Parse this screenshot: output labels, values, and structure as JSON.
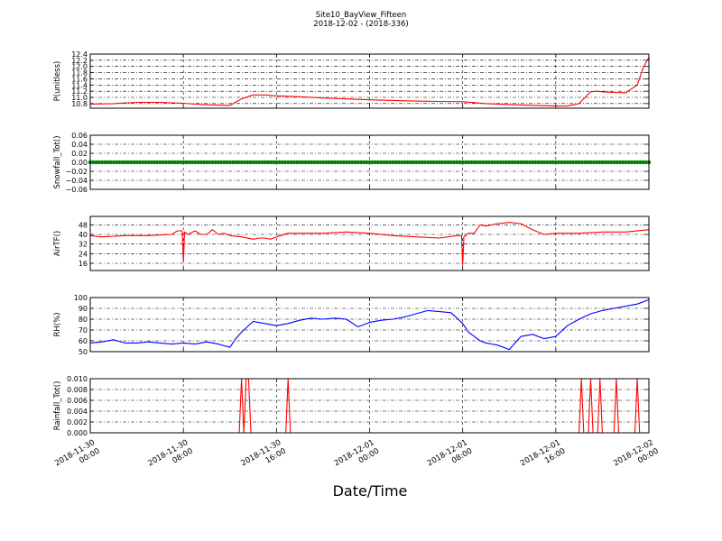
{
  "figure": {
    "title_line1": "Site10_BayView_Fifteen",
    "title_line2": "2018-12-02 - (2018-336)",
    "xlabel": "Date/Time"
  },
  "chart_data": [
    {
      "type": "line",
      "ylabel": "P(unitless)",
      "color": "#ff0000",
      "ylim": [
        10.65,
        12.4
      ],
      "yticks": [
        "12.4",
        "12.2",
        "12.0",
        "11.8",
        "11.6",
        "11.4",
        "11.2",
        "11.0",
        "10.8"
      ],
      "ytick_values": [
        12.4,
        12.2,
        12.0,
        11.8,
        11.6,
        11.4,
        11.2,
        11.0,
        10.8
      ],
      "x_hours": [
        0,
        2,
        4,
        6,
        8,
        9,
        10,
        12,
        13,
        14,
        15,
        16,
        18,
        20,
        22,
        24,
        26,
        28,
        30,
        32,
        34,
        36,
        38,
        40,
        41,
        42,
        43,
        43.5,
        44,
        45,
        46,
        47,
        47.5,
        48
      ],
      "values": [
        10.78,
        10.8,
        10.84,
        10.84,
        10.81,
        10.78,
        10.76,
        10.74,
        10.95,
        11.08,
        11.08,
        11.05,
        11.02,
        10.98,
        10.95,
        10.92,
        10.9,
        10.88,
        10.87,
        10.86,
        10.8,
        10.77,
        10.74,
        10.72,
        10.72,
        10.8,
        11.18,
        11.2,
        11.18,
        11.16,
        11.15,
        11.4,
        11.95,
        12.3
      ]
    },
    {
      "type": "scatter",
      "ylabel": "Snowfall_Tot()",
      "color": "#008000",
      "ylim": [
        -0.06,
        0.06
      ],
      "yticks": [
        "0.06",
        "0.04",
        "0.02",
        "0.00",
        "−0.02",
        "−0.04",
        "−0.06"
      ],
      "ytick_values": [
        0.06,
        0.04,
        0.02,
        0.0,
        -0.02,
        -0.04,
        -0.06
      ],
      "constant_value": 0.0,
      "x_range_hours": [
        0,
        48
      ]
    },
    {
      "type": "line",
      "ylabel": "AirTF()",
      "color": "#ff0000",
      "ylim": [
        10,
        55
      ],
      "yticks": [
        "48",
        "40",
        "32",
        "24",
        "16"
      ],
      "ytick_values": [
        48,
        40,
        32,
        24,
        16
      ],
      "x_hours": [
        0,
        1,
        3,
        5,
        7,
        7.5,
        7.9,
        8.0,
        8.1,
        8.4,
        9,
        9.5,
        10,
        10.5,
        11,
        11.5,
        12,
        13,
        14,
        14.5,
        15,
        15.5,
        16,
        17,
        18,
        20,
        22,
        24,
        26,
        28,
        30,
        31.5,
        31.9,
        32.0,
        32.1,
        32.5,
        33,
        33.5,
        34,
        35,
        36,
        37,
        38,
        39,
        40,
        42,
        44,
        46,
        48
      ],
      "values": [
        39,
        38,
        39,
        39,
        40,
        43,
        43,
        17,
        42,
        40,
        43,
        40,
        40,
        44,
        40,
        41,
        39,
        38,
        36,
        37,
        37,
        36,
        38,
        41,
        41,
        41,
        42,
        41,
        39,
        38,
        37,
        39,
        39,
        15,
        38,
        41,
        41,
        48,
        47,
        49,
        50,
        49,
        44,
        40,
        41,
        41,
        42,
        42,
        44
      ]
    },
    {
      "type": "line",
      "ylabel": "RH(%)",
      "color": "#0000ff",
      "ylim": [
        50,
        100
      ],
      "yticks": [
        "100",
        "90",
        "80",
        "70",
        "60",
        "50"
      ],
      "ytick_values": [
        100,
        90,
        80,
        70,
        60,
        50
      ],
      "x_hours": [
        0,
        1,
        2,
        3,
        4,
        5,
        6,
        7,
        8,
        9,
        10,
        11,
        12,
        12.5,
        13,
        14,
        15,
        16,
        17,
        18,
        19,
        20,
        21,
        22,
        23,
        24,
        25,
        26,
        27,
        28,
        29,
        30,
        31,
        32,
        32.5,
        33,
        33.5,
        34,
        35,
        36,
        37,
        38,
        39,
        40,
        41,
        42,
        43,
        44,
        45,
        46,
        47,
        48
      ],
      "values": [
        58,
        59,
        61,
        58,
        58,
        59,
        58,
        57,
        58,
        57,
        59,
        57,
        54,
        62,
        68,
        78,
        76,
        74,
        76,
        79,
        81,
        80,
        81,
        80,
        73,
        77,
        79,
        80,
        82,
        85,
        88,
        87,
        86,
        76,
        68,
        64,
        60,
        58,
        56,
        52,
        64,
        66,
        62,
        64,
        74,
        80,
        85,
        88,
        90,
        92,
        94,
        98
      ]
    },
    {
      "type": "line",
      "ylabel": "Rainfall_Tot()",
      "color": "#ff0000",
      "ylim": [
        0,
        0.01
      ],
      "yticks": [
        "0.010",
        "0.008",
        "0.006",
        "0.004",
        "0.002",
        "0.000"
      ],
      "ytick_values": [
        0.01,
        0.008,
        0.006,
        0.004,
        0.002,
        0.0
      ],
      "x_hours": [
        0,
        12.8,
        13.0,
        13.2,
        13.4,
        13.6,
        13.8,
        14.0,
        16.8,
        17.0,
        17.2,
        42.0,
        42.2,
        42.4,
        42.8,
        43.0,
        43.2,
        43.6,
        43.8,
        44.0,
        45.0,
        45.2,
        45.4,
        46.8,
        47.0,
        47.2,
        48
      ],
      "values": [
        0,
        0,
        0.01,
        0,
        0.01,
        0.01,
        0,
        0,
        0,
        0.01,
        0,
        0,
        0.01,
        0,
        0,
        0.01,
        0,
        0,
        0.01,
        0,
        0,
        0.01,
        0,
        0,
        0.01,
        0,
        0
      ]
    }
  ],
  "xaxis": {
    "range_hours": [
      0,
      48
    ],
    "ticks": [
      {
        "hour": 0,
        "line1": "2018-11-30",
        "line2": "00:00"
      },
      {
        "hour": 8,
        "line1": "2018-11-30",
        "line2": "08:00"
      },
      {
        "hour": 16,
        "line1": "2018-11-30",
        "line2": "16:00"
      },
      {
        "hour": 24,
        "line1": "2018-12-01",
        "line2": "00:00"
      },
      {
        "hour": 32,
        "line1": "2018-12-01",
        "line2": "08:00"
      },
      {
        "hour": 40,
        "line1": "2018-12-01",
        "line2": "16:00"
      },
      {
        "hour": 48,
        "line1": "2018-12-02",
        "line2": "00:00"
      }
    ]
  }
}
